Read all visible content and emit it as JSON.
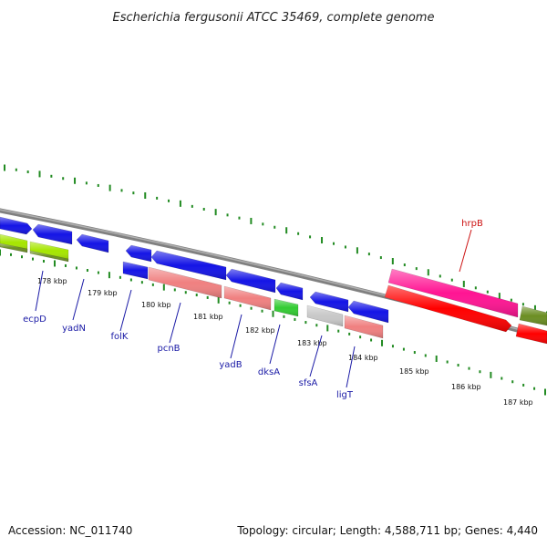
{
  "title": "Escherichia fergusonii ATCC 35469, complete genome",
  "footer": {
    "accession": "Accession: NC_011740",
    "summary": "Topology: circular; Length: 4,588,711 bp; Genes: 4,440"
  },
  "ticks": [
    "178 kbp",
    "179 kbp",
    "180 kbp",
    "181 kbp",
    "182 kbp",
    "183 kbp",
    "184 kbp",
    "185 kbp",
    "186 kbp",
    "187 kbp"
  ],
  "gene_labels": [
    {
      "name": "ecpD",
      "color": "#1a1aa6"
    },
    {
      "name": "yadN",
      "color": "#1a1aa6"
    },
    {
      "name": "folK",
      "color": "#1a1aa6"
    },
    {
      "name": "pcnB",
      "color": "#1a1aa6"
    },
    {
      "name": "yadB",
      "color": "#1a1aa6"
    },
    {
      "name": "dksA",
      "color": "#1a1aa6"
    },
    {
      "name": "sfsA",
      "color": "#1a1aa6"
    },
    {
      "name": "ligT",
      "color": "#1a1aa6"
    },
    {
      "name": "hrpB",
      "color": "#cc1111"
    }
  ],
  "colors": {
    "cds_blue": "#1414e6",
    "salmon": "#f08080",
    "green": "#33cc33",
    "lime": "#a6e600",
    "olive": "#6b8e23",
    "magenta": "#ff1493",
    "red": "#ff0000",
    "gray": "#c8c8c8",
    "backbone": "#808080",
    "tick": "#228b22"
  }
}
